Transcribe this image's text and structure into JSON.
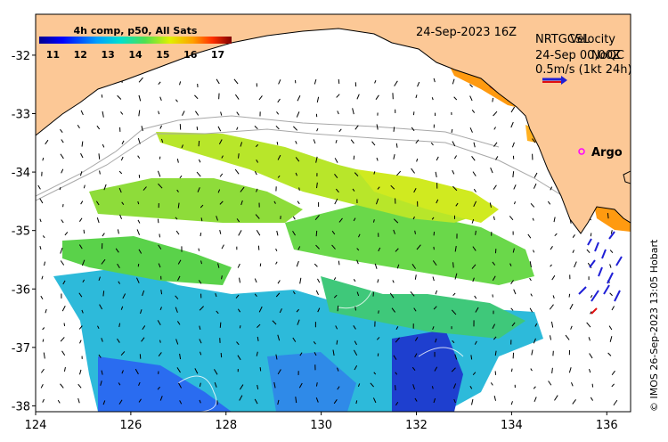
{
  "chart_data": {
    "type": "map",
    "xlim": [
      124,
      136.5
    ],
    "ylim": [
      -38.1,
      -31.3
    ],
    "x_ticks": [
      124,
      126,
      128,
      130,
      132,
      134,
      136
    ],
    "y_ticks": [
      -32,
      -33,
      -34,
      -35,
      -36,
      -37,
      -38
    ],
    "x_tick_labels": [
      "124",
      "126",
      "128",
      "130",
      "132",
      "134",
      "136"
    ],
    "y_tick_labels": [
      "-32",
      "-33",
      "-34",
      "-35",
      "-36",
      "-37",
      "-38"
    ],
    "colorbar": {
      "title": "4h comp, p50, All Sats",
      "range": [
        10.5,
        17.5
      ],
      "ticks": [
        "11",
        "12",
        "13",
        "14",
        "15",
        "16",
        "17"
      ],
      "tick_values": [
        11,
        12,
        13,
        14,
        15,
        16,
        17
      ]
    },
    "date_label": "24-Sep-2023 16Z",
    "legend": {
      "line1a": "NRTGCSL",
      "line1b": "Velocity",
      "line2a": "24-Sep 00,00Z",
      "line2b": "NoQC",
      "scale_label": "0.5m/s (1kt 24h)"
    },
    "argo_label": "Argo",
    "argo_position": [
      135.0,
      -33.6
    ],
    "credit": "© IMOS 26-Sep-2023 13:05 Hobart"
  },
  "colors": {
    "land": "#fcc896",
    "coast": "#000000",
    "argo_marker": "#ff00ff",
    "vector_blue": "#1f1fd6",
    "vector_red": "#e01010"
  }
}
